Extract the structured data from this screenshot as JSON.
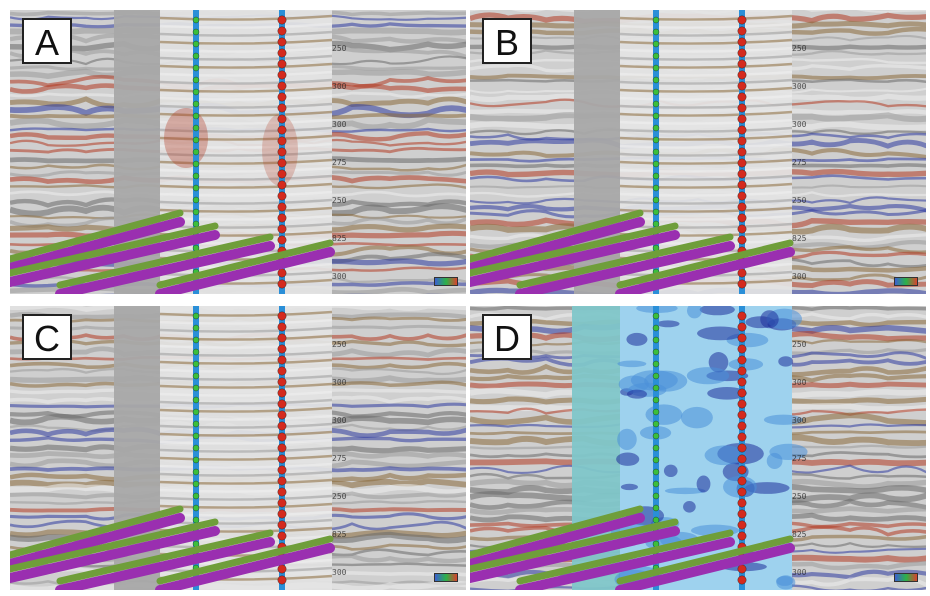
{
  "figure": {
    "panels": [
      {
        "id": "a",
        "label": "A",
        "mode": "seismic"
      },
      {
        "id": "b",
        "label": "B",
        "mode": "seismic"
      },
      {
        "id": "c",
        "label": "C",
        "mode": "seismic"
      },
      {
        "id": "d",
        "label": "D",
        "mode": "blue-attribute"
      }
    ],
    "depth_ticks": [
      "250",
      "300",
      "300",
      "275",
      "250",
      "825",
      "300"
    ],
    "colors": {
      "seismic_red": "#b23a22",
      "seismic_blue": "#2d3aa0",
      "seismic_brown": "#8a6a3a",
      "well_blue": "#2a8fd8",
      "well_green_marker": "#3bbf3b",
      "well_red_marker": "#d42a1e",
      "pipe_purple": "#9a2fb0",
      "pipe_green": "#6f9e3a",
      "attribute_blue": "#4a8fd8"
    }
  }
}
